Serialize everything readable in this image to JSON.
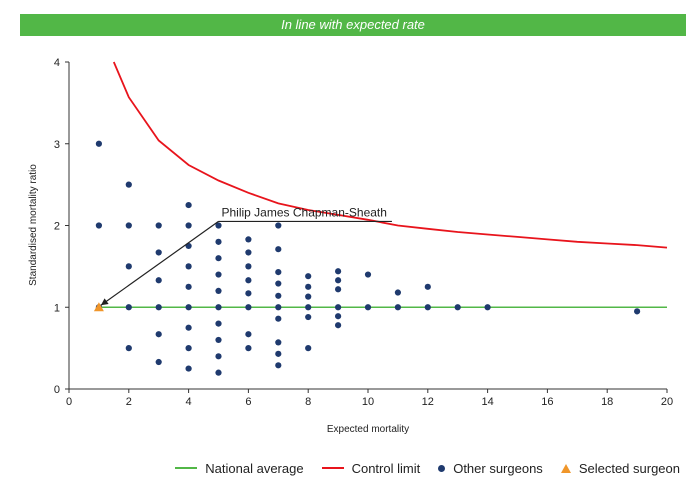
{
  "header": {
    "banner_text": "In line with expected rate"
  },
  "colors": {
    "banner": "#52b747",
    "national_average": "#52b747",
    "control_limit": "#e8141c",
    "other_surgeons": "#1f3a6e",
    "selected_surgeon": "#f0962a"
  },
  "chart_data": {
    "type": "scatter",
    "xlabel": "Expected mortality",
    "ylabel": "Standardised mortality ratio",
    "xlim": [
      0,
      20
    ],
    "ylim": [
      0,
      4
    ],
    "x_ticks": [
      0,
      2,
      4,
      6,
      8,
      10,
      12,
      14,
      16,
      18,
      20
    ],
    "y_ticks": [
      0,
      1,
      2,
      3,
      4
    ],
    "grid": false,
    "legend_position": "bottom",
    "annotation": {
      "text": "Philip James Chapman-Sheath",
      "x": 1,
      "y": 1
    },
    "series": [
      {
        "name": "National average",
        "kind": "line",
        "points": [
          [
            1,
            1
          ],
          [
            20,
            1
          ]
        ]
      },
      {
        "name": "Control limit",
        "kind": "line",
        "points": [
          [
            1.5,
            4.0
          ],
          [
            2,
            3.57
          ],
          [
            3,
            3.04
          ],
          [
            4,
            2.74
          ],
          [
            5,
            2.55
          ],
          [
            6,
            2.4
          ],
          [
            7,
            2.27
          ],
          [
            8,
            2.19
          ],
          [
            9,
            2.13
          ],
          [
            10,
            2.07
          ],
          [
            11,
            2.0
          ],
          [
            12,
            1.96
          ],
          [
            13,
            1.92
          ],
          [
            14,
            1.89
          ],
          [
            15,
            1.86
          ],
          [
            16,
            1.83
          ],
          [
            17,
            1.8
          ],
          [
            18,
            1.78
          ],
          [
            19,
            1.76
          ],
          [
            20,
            1.73
          ]
        ]
      },
      {
        "name": "Other surgeons",
        "kind": "scatter",
        "points": [
          [
            1,
            3.0
          ],
          [
            1,
            2.0
          ],
          [
            1,
            1.0
          ],
          [
            2,
            2.5
          ],
          [
            2,
            2.0
          ],
          [
            2,
            1.5
          ],
          [
            2,
            1.0
          ],
          [
            2,
            0.5
          ],
          [
            3,
            2.0
          ],
          [
            3,
            1.67
          ],
          [
            3,
            1.33
          ],
          [
            3,
            1.0
          ],
          [
            3,
            0.67
          ],
          [
            3,
            0.33
          ],
          [
            4,
            2.25
          ],
          [
            4,
            2.0
          ],
          [
            4,
            1.75
          ],
          [
            4,
            1.5
          ],
          [
            4,
            1.25
          ],
          [
            4,
            1.0
          ],
          [
            4,
            0.75
          ],
          [
            4,
            0.5
          ],
          [
            4,
            0.25
          ],
          [
            5,
            2.0
          ],
          [
            5,
            1.8
          ],
          [
            5,
            1.6
          ],
          [
            5,
            1.4
          ],
          [
            5,
            1.2
          ],
          [
            5,
            1.0
          ],
          [
            5,
            0.8
          ],
          [
            5,
            0.6
          ],
          [
            5,
            0.4
          ],
          [
            5,
            0.2
          ],
          [
            6,
            1.83
          ],
          [
            6,
            1.67
          ],
          [
            6,
            1.5
          ],
          [
            6,
            1.33
          ],
          [
            6,
            1.17
          ],
          [
            6,
            1.0
          ],
          [
            6,
            0.67
          ],
          [
            6,
            0.5
          ],
          [
            7,
            2.0
          ],
          [
            7,
            1.71
          ],
          [
            7,
            1.43
          ],
          [
            7,
            1.29
          ],
          [
            7,
            1.14
          ],
          [
            7,
            1.0
          ],
          [
            7,
            0.86
          ],
          [
            7,
            0.57
          ],
          [
            7,
            0.43
          ],
          [
            7,
            0.29
          ],
          [
            8,
            1.38
          ],
          [
            8,
            1.25
          ],
          [
            8,
            1.13
          ],
          [
            8,
            1.0
          ],
          [
            8,
            0.88
          ],
          [
            8,
            0.5
          ],
          [
            9,
            1.44
          ],
          [
            9,
            1.33
          ],
          [
            9,
            1.22
          ],
          [
            9,
            1.0
          ],
          [
            9,
            0.89
          ],
          [
            9,
            0.78
          ],
          [
            10,
            1.4
          ],
          [
            10,
            1.0
          ],
          [
            11,
            1.18
          ],
          [
            11,
            1.0
          ],
          [
            12,
            1.25
          ],
          [
            12,
            1.0
          ],
          [
            13,
            1.0
          ],
          [
            14,
            1.0
          ],
          [
            19,
            0.95
          ]
        ]
      },
      {
        "name": "Selected surgeon",
        "kind": "scatter",
        "points": [
          [
            1,
            1.0
          ]
        ]
      }
    ]
  },
  "legend": {
    "national_average": "National average",
    "control_limit": "Control limit",
    "other_surgeons": "Other surgeons",
    "selected_surgeon": "Selected surgeon"
  }
}
